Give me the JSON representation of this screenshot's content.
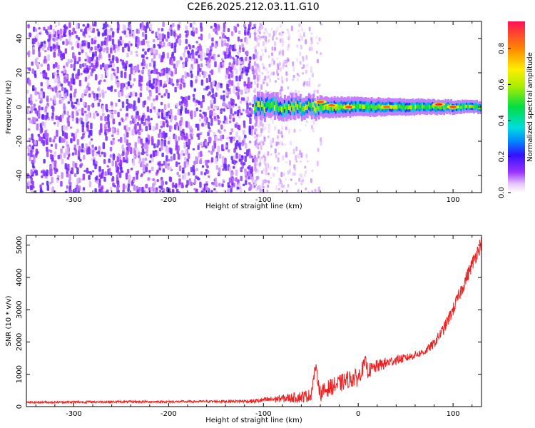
{
  "title": "C2E6.2025.212.03.11.G10",
  "chart_data": [
    {
      "type": "heatmap",
      "xlabel": "Height of straight line (km)",
      "ylabel": "Frequency (Hz)",
      "xlim": [
        -350,
        130
      ],
      "ylim": [
        -50,
        50
      ],
      "xticks": [
        -300,
        -200,
        -100,
        0,
        100
      ],
      "yticks": [
        -40,
        -20,
        0,
        20,
        40
      ],
      "noise_region": {
        "x": [
          -350,
          -110
        ],
        "y": [
          -50,
          50
        ]
      },
      "sparse_noise_region": {
        "x": [
          -110,
          -40
        ]
      },
      "signal_band": {
        "x": [
          -110,
          130
        ],
        "center_frequency": 0,
        "halfwidth_start": 4,
        "halfwidth_end": 2
      },
      "peaks": [
        {
          "x": -40,
          "y": 3,
          "amplitude": 0.9
        },
        {
          "x": -28,
          "y": 1,
          "amplitude": 0.85
        },
        {
          "x": -10,
          "y": 0,
          "amplitude": 0.9
        },
        {
          "x": 30,
          "y": 0,
          "amplitude": 0.85
        },
        {
          "x": 85,
          "y": 1.5,
          "amplitude": 0.95
        },
        {
          "x": 100,
          "y": 0,
          "amplitude": 0.9
        }
      ],
      "colorbar": {
        "label": "Normalized spectral amplitude",
        "range": [
          0,
          0.95
        ],
        "ticks": [
          0.0,
          0.2,
          0.4,
          0.6,
          0.8
        ]
      },
      "grid": false
    },
    {
      "type": "line",
      "xlabel": "Height of straight line (km)",
      "ylabel": "SNR (10 * v/v)",
      "xlim": [
        -350,
        130
      ],
      "ylim": [
        0,
        5300
      ],
      "xticks": [
        -300,
        -200,
        -100,
        0,
        100
      ],
      "yticks": [
        0,
        1000,
        2000,
        3000,
        4000,
        5000
      ],
      "series": [
        {
          "color": "#ee2222",
          "x": [
            -350,
            -300,
            -250,
            -200,
            -150,
            -110,
            -100,
            -80,
            -60,
            -50,
            -45,
            -40,
            -30,
            -20,
            -10,
            0,
            8,
            10,
            20,
            30,
            40,
            50,
            60,
            70,
            80,
            90,
            100,
            110,
            120,
            130
          ],
          "values": [
            130,
            140,
            150,
            150,
            160,
            170,
            200,
            250,
            300,
            350,
            1250,
            400,
            600,
            700,
            850,
            900,
            1400,
            1100,
            1250,
            1350,
            1450,
            1500,
            1600,
            1700,
            1950,
            2400,
            3000,
            3700,
            4400,
            5100
          ],
          "noise_amplitude": [
            35,
            35,
            35,
            35,
            40,
            60,
            80,
            120,
            180,
            200,
            150,
            250,
            260,
            280,
            280,
            280,
            200,
            230,
            200,
            180,
            150,
            130,
            120,
            110,
            150,
            180,
            200,
            220,
            230,
            250
          ]
        }
      ],
      "grid": false
    }
  ]
}
